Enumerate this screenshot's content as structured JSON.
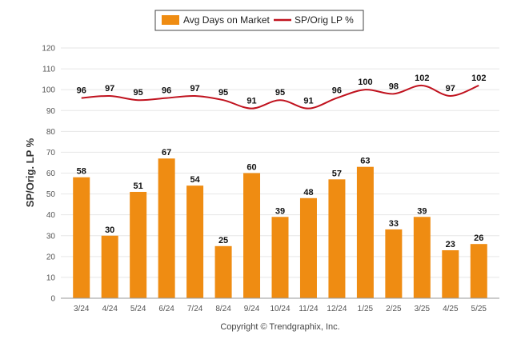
{
  "chart_data": {
    "type": "bar",
    "categories": [
      "3/24",
      "4/24",
      "5/24",
      "6/24",
      "7/24",
      "8/24",
      "9/24",
      "10/24",
      "11/24",
      "12/24",
      "1/25",
      "2/25",
      "3/25",
      "4/25",
      "5/25"
    ],
    "series": [
      {
        "name": "Avg Days on Market",
        "type": "bar",
        "color": "#ef8c12",
        "values": [
          58,
          30,
          51,
          67,
          54,
          25,
          60,
          39,
          48,
          57,
          63,
          33,
          39,
          23,
          26
        ]
      },
      {
        "name": "SP/Orig LP %",
        "type": "line",
        "color": "#c0121e",
        "values": [
          96,
          97,
          95,
          96,
          97,
          95,
          91,
          95,
          91,
          96,
          100,
          98,
          102,
          97,
          102
        ]
      }
    ],
    "ylabel": "SP/Orig. LP %",
    "xlabel": "",
    "ylim": [
      0,
      120
    ],
    "yticks": [
      0,
      10,
      20,
      30,
      40,
      50,
      60,
      70,
      80,
      90,
      100,
      110,
      120
    ],
    "grid": true,
    "legend": "top-center"
  },
  "footer": "Copyright © Trendgraphix, Inc."
}
